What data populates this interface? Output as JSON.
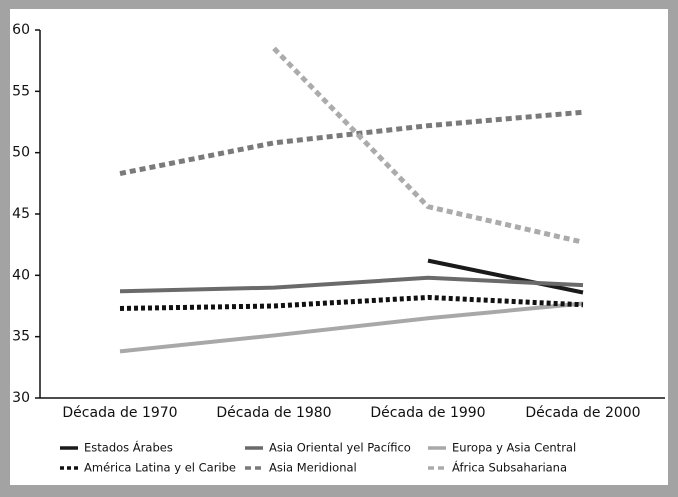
{
  "chart_data": {
    "type": "line",
    "categories": [
      "Década de 1970",
      "Década de 1980",
      "Década de 1990",
      "Década de 2000"
    ],
    "ylim": [
      30,
      60
    ],
    "yticks": [
      30,
      35,
      40,
      45,
      50,
      55,
      60
    ],
    "series": [
      {
        "name": "Estados Árabes",
        "color": "#1a1a1a",
        "style": "solid",
        "values": [
          null,
          null,
          41.2,
          38.6
        ]
      },
      {
        "name": "Asia Oriental yel Pacífico",
        "color": "#6a6a6a",
        "style": "solid",
        "values": [
          38.7,
          39.0,
          39.8,
          39.2
        ]
      },
      {
        "name": "Europa y Asia Central",
        "color": "#a8a8a8",
        "style": "solid",
        "values": [
          33.8,
          35.1,
          36.5,
          37.7
        ]
      },
      {
        "name": "América Latina y el Caribe",
        "color": "#111111",
        "style": "dotted",
        "values": [
          37.3,
          37.5,
          38.2,
          37.6
        ]
      },
      {
        "name": "Asia Meridional",
        "color": "#7a7a7a",
        "style": "dashed",
        "values": [
          48.3,
          50.8,
          52.2,
          53.3
        ]
      },
      {
        "name": "África Subsahariana",
        "color": "#ababab",
        "style": "dashed",
        "values": [
          null,
          58.5,
          45.6,
          42.7
        ]
      }
    ]
  }
}
